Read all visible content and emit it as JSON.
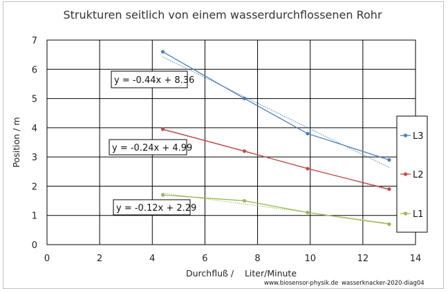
{
  "chart_data": {
    "type": "scatter",
    "title": "Strukturen seitlich von einem wasserdurchflossenen Rohr",
    "xlabel": "Durchfluß /    Liter/Minute",
    "ylabel": "Position / m",
    "xlim": [
      0,
      14
    ],
    "ylim": [
      0,
      7
    ],
    "xticks": [
      0,
      2,
      4,
      6,
      8,
      10,
      12,
      14
    ],
    "yticks": [
      0,
      1,
      2,
      3,
      4,
      5,
      6,
      7
    ],
    "grid": true,
    "legend_position": "right",
    "series": [
      {
        "name": "L3",
        "color": "#4a7ebb",
        "x": [
          4.4,
          7.5,
          9.9,
          13
        ],
        "y": [
          6.6,
          5.0,
          3.8,
          2.9
        ],
        "trendline": {
          "label": "y = -0.44x + 8.36",
          "slope": -0.44,
          "intercept": 8.36
        }
      },
      {
        "name": "L2",
        "color": "#be4b48",
        "x": [
          4.4,
          7.5,
          9.9,
          13
        ],
        "y": [
          3.95,
          3.2,
          2.6,
          1.9
        ],
        "trendline": {
          "label": "y = -0.24x + 4.99",
          "slope": -0.24,
          "intercept": 4.99
        }
      },
      {
        "name": "L1",
        "color": "#98b954",
        "x": [
          4.4,
          7.5,
          9.9,
          13
        ],
        "y": [
          1.7,
          1.5,
          1.1,
          0.7
        ],
        "trendline": {
          "label": "y = -0.12x + 2.29",
          "slope": -0.12,
          "intercept": 2.29
        }
      }
    ],
    "credit_left": "www.biosensor-physik.de",
    "credit_right": "wasserknacker-2020-diag04"
  }
}
